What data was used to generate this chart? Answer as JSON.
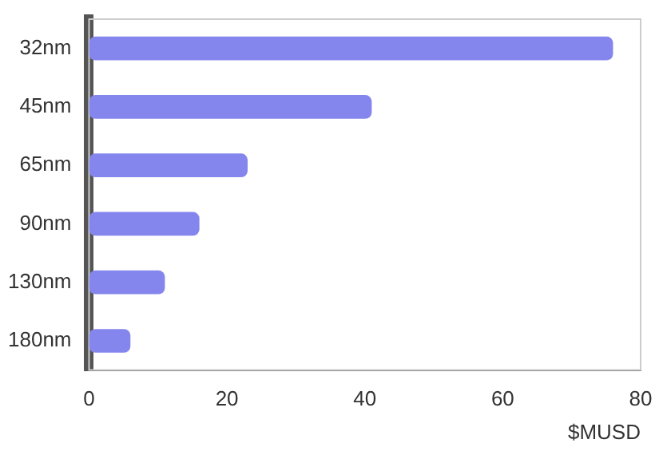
{
  "chart_data": {
    "type": "bar",
    "orientation": "horizontal",
    "categories": [
      "32nm",
      "45nm",
      "65nm",
      "90nm",
      "130nm",
      "180nm"
    ],
    "values": [
      76,
      41,
      23,
      16,
      11,
      6
    ],
    "color": "#8585ee",
    "xlabel": "$MUSD",
    "xlim": [
      0,
      80
    ],
    "xticks": [
      0,
      20,
      40,
      60,
      80
    ],
    "grid": false,
    "legend": false
  }
}
